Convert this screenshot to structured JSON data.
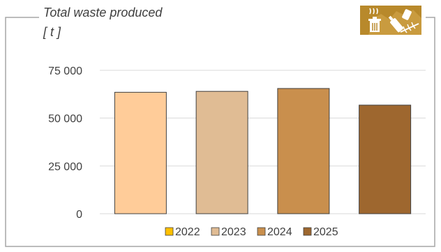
{
  "chart_data": {
    "type": "bar",
    "title": "Total waste produced",
    "unit": "[ t ]",
    "categories": [
      "2022",
      "2023",
      "2024",
      "2025"
    ],
    "values": [
      63500,
      64000,
      65500,
      56800
    ],
    "ylim": [
      0,
      75000
    ],
    "yticks": [
      0,
      25000,
      50000,
      75000
    ],
    "ytick_labels": [
      "0",
      "25 000",
      "50 000",
      "75 000"
    ],
    "grid": true,
    "legend_placement": "bottom",
    "legend_entries": [
      "2022",
      "2023",
      "2024",
      "2025"
    ],
    "colors": [
      "#ffcc99",
      "#e0bc94",
      "#c98f4d",
      "#9e672f"
    ],
    "legend_colors": [
      "#ffc000",
      "#e0bc94",
      "#c98f4d",
      "#9e672f"
    ]
  },
  "icon": {
    "name": "waste-icon",
    "color": "#b8892b"
  },
  "frame_color": "#a6a6a6"
}
